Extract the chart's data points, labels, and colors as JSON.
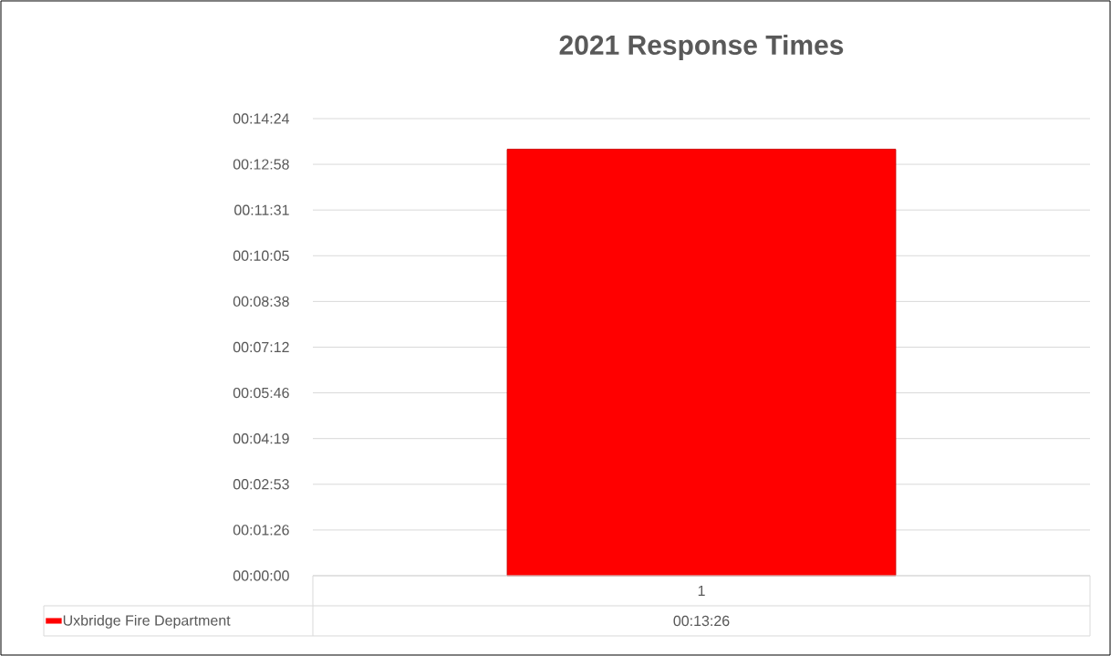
{
  "chart_data": {
    "type": "bar",
    "title": "2021 Response Times",
    "categories": [
      "1"
    ],
    "series": [
      {
        "name": "Uxbridge Fire Department",
        "color": "#ff0000",
        "values": [
          806
        ],
        "value_labels": [
          "00:13:26"
        ]
      }
    ],
    "ylim": [
      0,
      864
    ],
    "yticks": [
      {
        "value": 0,
        "label": "00:00:00"
      },
      {
        "value": 86.4,
        "label": "00:01:26"
      },
      {
        "value": 172.8,
        "label": "00:02:53"
      },
      {
        "value": 259.2,
        "label": "00:04:19"
      },
      {
        "value": 345.6,
        "label": "00:05:46"
      },
      {
        "value": 432,
        "label": "00:07:12"
      },
      {
        "value": 518.4,
        "label": "00:08:38"
      },
      {
        "value": 604.8,
        "label": "00:10:05"
      },
      {
        "value": 691.2,
        "label": "00:11:31"
      },
      {
        "value": 777.6,
        "label": "00:12:58"
      },
      {
        "value": 864,
        "label": "00:14:24"
      }
    ],
    "grid": "y",
    "legend": "bottom"
  }
}
